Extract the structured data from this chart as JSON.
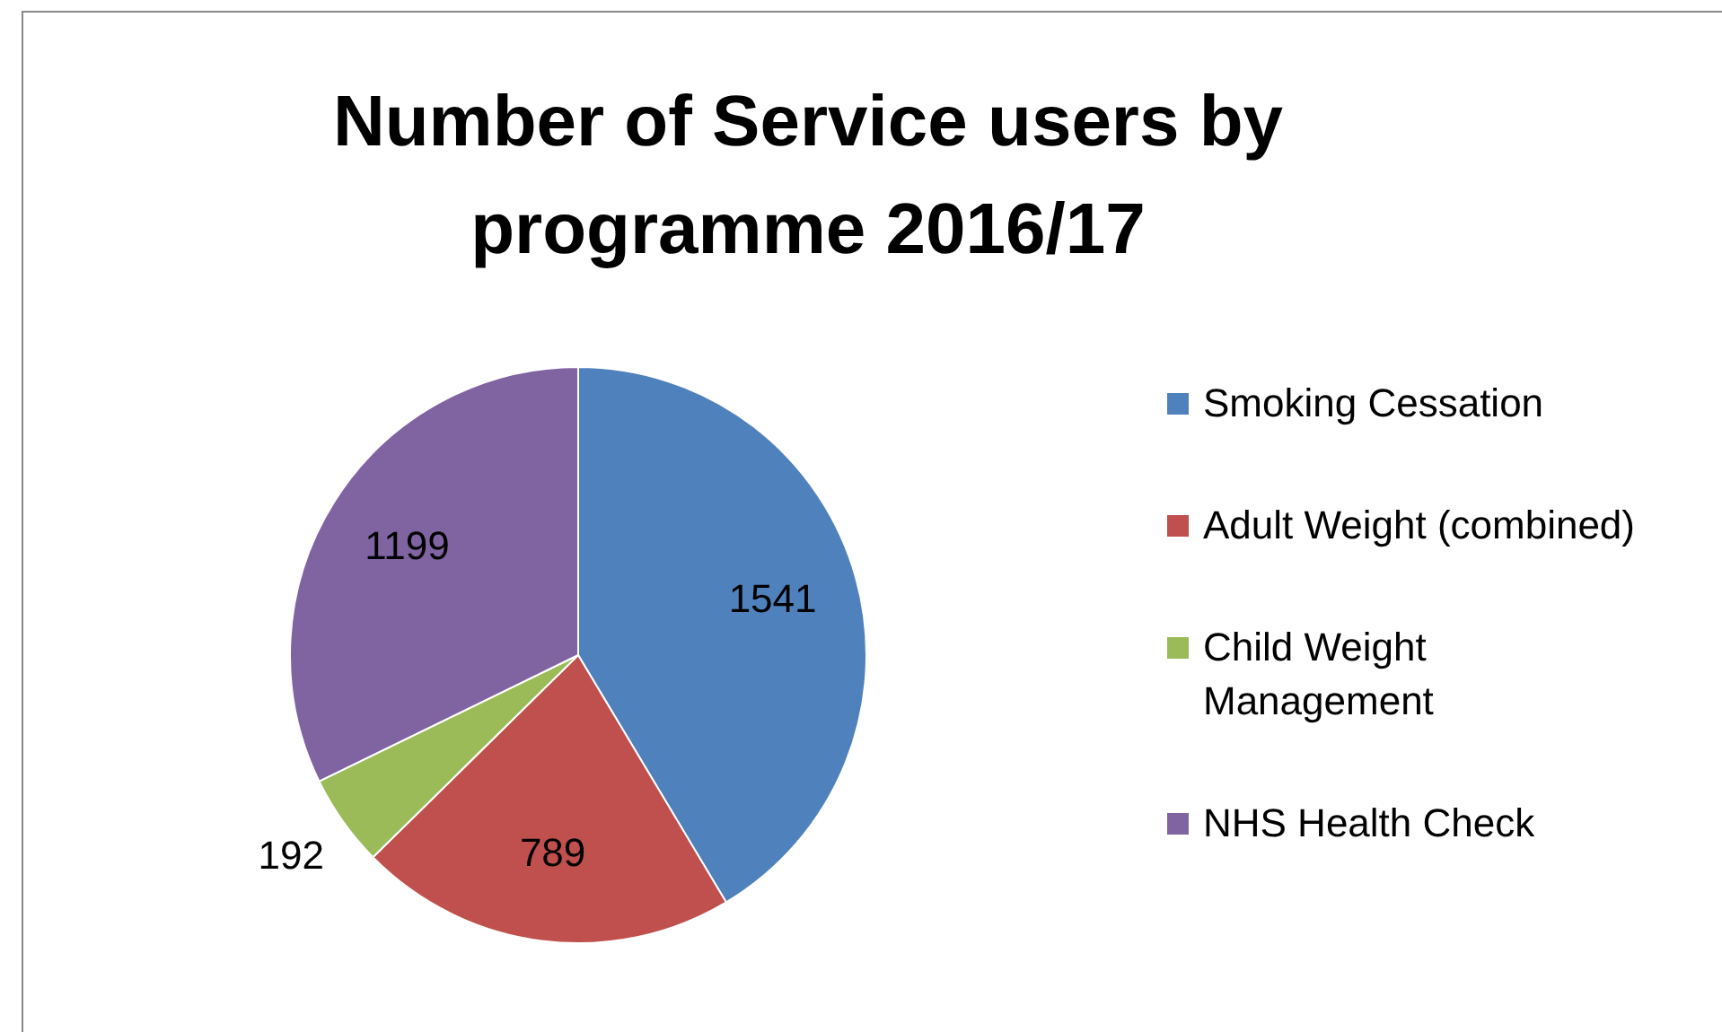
{
  "chart_data": {
    "type": "pie",
    "title": "Number of Service users by programme 2016/17",
    "categories": [
      "Smoking Cessation",
      "Adult Weight (combined)",
      "Child Weight Management",
      "NHS Health Check"
    ],
    "values": [
      1541,
      789,
      192,
      1199
    ],
    "colors": [
      "#4f81bd",
      "#c0504d",
      "#9bbb59",
      "#8064a2"
    ],
    "data_labels": true,
    "legend": "right"
  }
}
